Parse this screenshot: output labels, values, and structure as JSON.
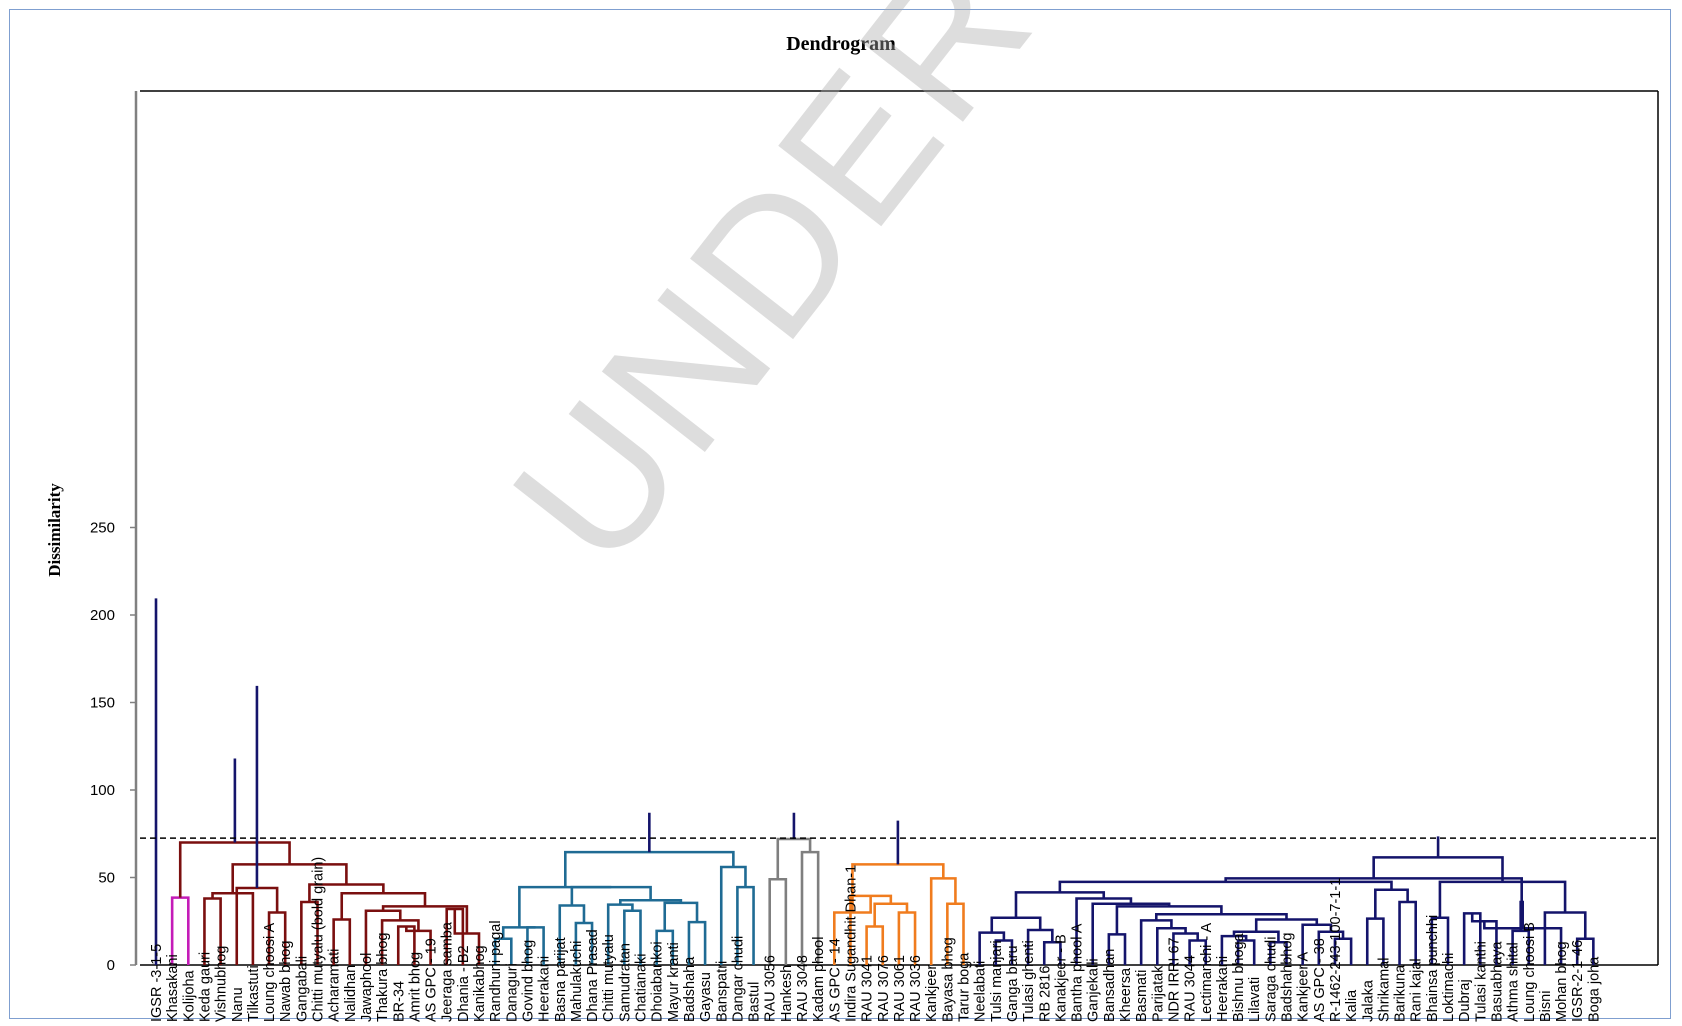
{
  "watermark": "UNDER PEER REVIEW",
  "chart_data": {
    "type": "dendrogram",
    "title": "Dendrogram",
    "xlabel": "",
    "ylabel": "Dissimilarity",
    "ylim": [
      0,
      250
    ],
    "yticks": [
      0,
      50,
      100,
      150,
      200,
      250
    ],
    "cut_line": 72.5,
    "grid": false,
    "leaves": [
      "IGSR -3-1-5",
      "Khasakani",
      "Kolijoha",
      "Keda gauri",
      "Vishnubhog",
      "Nanu",
      "Tilkastuti",
      "Loung choosi A",
      "Nawab bhog",
      "Gangabali",
      "Chitti mutyalu (bold grain)",
      "Acharamati",
      "Nalidhan",
      "Jawaphool",
      "Thakura bhog",
      "BR-34",
      "Amrit bhog",
      "AS GPC - 19",
      "Jeeraga samba",
      "Dhania - B2",
      "Kanikabhog",
      "Randhuni pagal",
      "Danaguri",
      "Govind bhog",
      "Heerakani",
      "Basna parijat",
      "Mahulakuchi",
      "Dhana Prasad",
      "Chitti mutyalu",
      "Samudratan",
      "Chatianaki",
      "Dhoiabankoi",
      "Mayur kranti",
      "Badshaha",
      "Gayasu",
      "Banspatri",
      "Dangar chudi",
      "Bastul",
      "RAU 3056",
      "Hankesh",
      "RAU 3048",
      "Kadam phool",
      "AS GPC - 14",
      "Indira Sugandhit Dhan-1",
      "RAU 3041",
      "RAU 3076",
      "RAU 3061",
      "RAU 3036",
      "Kankjeer",
      "Bayasa bhog",
      "Tarur boga",
      "Neelabati",
      "Tulsi manjari",
      "Ganga baru",
      "Tulasi ghenti",
      "RB 2816",
      "Kanakjeer - B",
      "Bantha phool A",
      "Ganjekalli",
      "Bansadhan",
      "Kheersa",
      "Basmati",
      "Parijatak",
      "NDR IRRI 67",
      "RAU 3044",
      "Lectimanchi - A",
      "Heerakani",
      "Bishnu bhoga",
      "Lilavati",
      "Saraga chudi",
      "Badshahbhog",
      "Kankjeer A",
      "AS GPC - 38",
      "R-1462-243-100-7-1-1",
      "Kalia",
      "Jalaka",
      "Shrikamal",
      "Barikuna",
      "Rani kajal",
      "Bhainsa punchhi",
      "Loktimachi",
      "Dubraj",
      "Tulasi kanthi",
      "Basuabhaya",
      "Athma shital",
      "Loung choosi B",
      "Bisni",
      "Mohan bhog",
      "IGSR-2-1-46",
      "Boga joha"
    ],
    "leaf_colors": {
      "#7a0f0f": "clusters 3-20",
      "#1f6b94": "clusters 21-37",
      "#7f7f7f": "clusters 38-40",
      "#f07c1e": "clusters 41-50",
      "#14146b": "clusters 51-89",
      "#c41cb8": "Khasakani-Kolijoha"
    },
    "merges": [
      [
        1,
        2,
        38.5,
        "#c41cb8"
      ],
      [
        3,
        4,
        38,
        "#7a0f0f"
      ],
      [
        7,
        8,
        30,
        "#7a0f0f"
      ],
      [
        6,
        91,
        41,
        "#7a0f0f"
      ],
      [
        5,
        92,
        44,
        "#7a0f0f"
      ],
      [
        9,
        10,
        36,
        "#7a0f0f"
      ],
      [
        11,
        12,
        26,
        "#7a0f0f"
      ],
      [
        15,
        16,
        22,
        "#7a0f0f"
      ],
      [
        17,
        97,
        19.5,
        "#7a0f0f"
      ],
      [
        14,
        98,
        25.5,
        "#7a0f0f"
      ],
      [
        13,
        99,
        31,
        "#7a0f0f"
      ],
      [
        18,
        19,
        32,
        "#7a0f0f"
      ],
      [
        20,
        101,
        18,
        "#7a0f0f"
      ],
      [
        100,
        102,
        33.5,
        "#7a0f0f"
      ],
      [
        96,
        103,
        41,
        "#7a0f0f"
      ],
      [
        95,
        104,
        46,
        "#7a0f0f"
      ],
      [
        93,
        105,
        57.5,
        "#7a0f0f"
      ],
      [
        90,
        106,
        70,
        "#7a0f0f"
      ],
      [
        21,
        22,
        15,
        "#1f6b94"
      ],
      [
        23,
        24,
        21.5,
        "#1f6b94"
      ],
      [
        108,
        109,
        21.5,
        "#1f6b94"
      ],
      [
        26,
        27,
        24,
        "#1f6b94"
      ],
      [
        25,
        111,
        34,
        "#1f6b94"
      ],
      [
        29,
        30,
        31,
        "#1f6b94"
      ],
      [
        28,
        113,
        34.5,
        "#1f6b94"
      ],
      [
        31,
        32,
        19.5,
        "#1f6b94"
      ],
      [
        33,
        34,
        24.5,
        "#1f6b94"
      ],
      [
        115,
        116,
        35.5,
        "#1f6b94"
      ],
      [
        114,
        117,
        37,
        "#1f6b94"
      ],
      [
        112,
        118,
        44.5,
        "#1f6b94"
      ],
      [
        110,
        119,
        44.5,
        "#1f6b94"
      ],
      [
        36,
        37,
        44.5,
        "#1f6b94"
      ],
      [
        35,
        121,
        56,
        "#1f6b94"
      ],
      [
        120,
        122,
        64.5,
        "#1f6b94"
      ],
      [
        38,
        39,
        49,
        "#7f7f7f"
      ],
      [
        40,
        41,
        64.5,
        "#7f7f7f"
      ],
      [
        124,
        125,
        72,
        "#7f7f7f"
      ],
      [
        44,
        45,
        22,
        "#f07c1e"
      ],
      [
        46,
        47,
        30,
        "#f07c1e"
      ],
      [
        127,
        128,
        35,
        "#f07c1e"
      ],
      [
        43,
        129,
        39.5,
        "#f07c1e"
      ],
      [
        42,
        130,
        30,
        "#f07c1e"
      ],
      [
        49,
        50,
        35,
        "#f07c1e"
      ],
      [
        48,
        132,
        49.5,
        "#f07c1e"
      ],
      [
        131,
        133,
        57.5,
        "#f07c1e"
      ],
      [
        52,
        53,
        14,
        "#14146b"
      ],
      [
        51,
        135,
        18.5,
        "#14146b"
      ],
      [
        55,
        56,
        13,
        "#14146b"
      ],
      [
        54,
        137,
        20,
        "#14146b"
      ],
      [
        136,
        138,
        27,
        "#14146b"
      ],
      [
        59,
        60,
        17.5,
        "#14146b"
      ],
      [
        64,
        65,
        14,
        "#14146b"
      ],
      [
        63,
        141,
        18,
        "#14146b"
      ],
      [
        62,
        142,
        21,
        "#14146b"
      ],
      [
        61,
        143,
        25.5,
        "#14146b"
      ],
      [
        67,
        68,
        14,
        "#14146b"
      ],
      [
        66,
        145,
        16.5,
        "#14146b"
      ],
      [
        69,
        70,
        13,
        "#14146b"
      ],
      [
        146,
        147,
        19,
        "#14146b"
      ],
      [
        73,
        74,
        15,
        "#14146b"
      ],
      [
        72,
        149,
        19,
        "#14146b"
      ],
      [
        71,
        150,
        23,
        "#14146b"
      ],
      [
        148,
        151,
        26,
        "#14146b"
      ],
      [
        144,
        152,
        29,
        "#14146b"
      ],
      [
        140,
        153,
        33.5,
        "#14146b"
      ],
      [
        58,
        154,
        35,
        "#14146b"
      ],
      [
        57,
        155,
        38,
        "#14146b"
      ],
      [
        139,
        156,
        41.5,
        "#14146b"
      ],
      [
        75,
        76,
        26.5,
        "#14146b"
      ],
      [
        77,
        78,
        36,
        "#14146b"
      ],
      [
        158,
        159,
        43,
        "#14146b"
      ],
      [
        157,
        160,
        47.5,
        "#14146b"
      ],
      [
        79,
        80,
        27,
        "#14146b"
      ],
      [
        81,
        82,
        29.5,
        "#14146b"
      ],
      [
        84,
        85,
        19.5,
        "#14146b"
      ],
      [
        83,
        163,
        25,
        "#14146b"
      ],
      [
        88,
        89,
        15,
        "#14146b"
      ],
      [
        87,
        165,
        21,
        "#14146b"
      ],
      [
        86,
        166,
        30,
        "#14146b"
      ],
      [
        164,
        167,
        36,
        "#14146b"
      ],
      [
        162,
        168,
        47.5,
        "#14146b"
      ],
      [
        161,
        169,
        49.5,
        "#14146b"
      ],
      [
        170,
        171,
        61.5,
        "#14146b"
      ],
      [
        172,
        173,
        73.5,
        "#14146b"
      ],
      [
        134,
        174,
        82.5,
        "#14146b"
      ],
      [
        126,
        175,
        87,
        "#14146b"
      ],
      [
        123,
        176,
        87,
        "#14146b"
      ],
      [
        107,
        177,
        118,
        "#14146b"
      ],
      [
        94,
        178,
        159.5,
        "#14146b"
      ],
      [
        0,
        179,
        209.5,
        "#14146b"
      ]
    ]
  }
}
